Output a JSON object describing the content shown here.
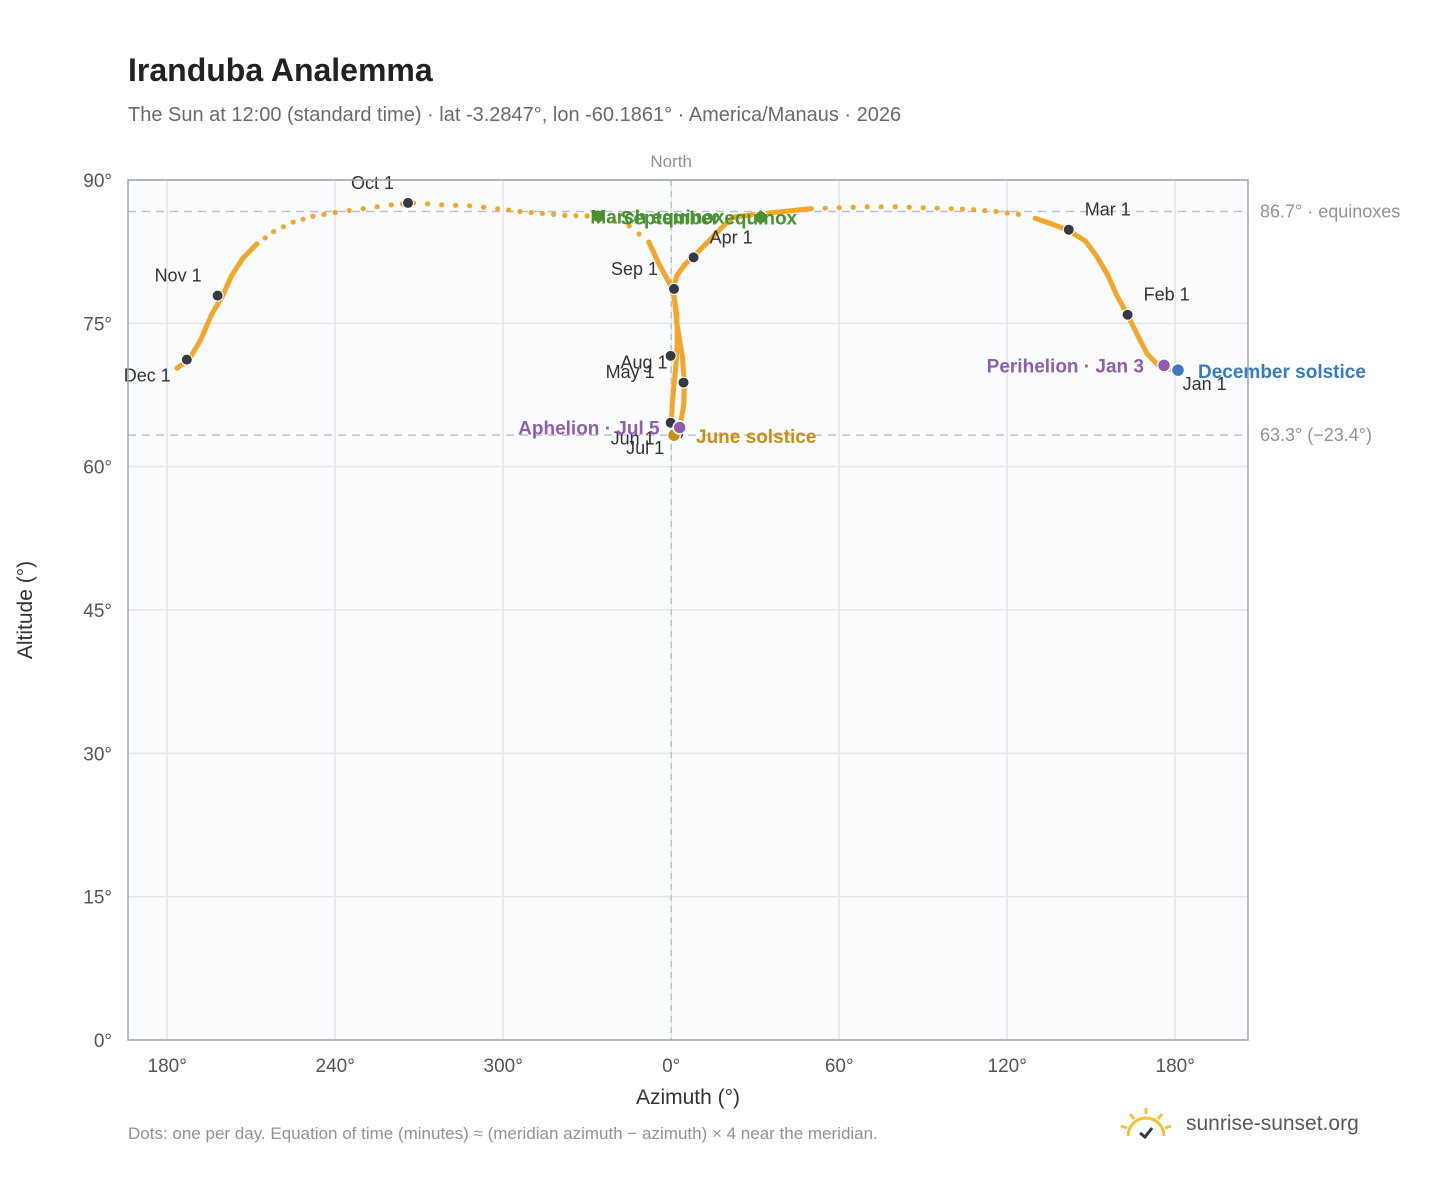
{
  "title": "Iranduba Analemma",
  "subtitle": "The Sun at 12:00 (standard time) · lat -3.2847°, lon -60.1861° · America/Manaus · 2026",
  "footnote": "Dots: one per day. Equation of time (minutes) ≈ (meridian azimuth − azimuth) × 4 near the meridian.",
  "brand": "sunrise-sunset.org",
  "brand_icon": "sun-logo-icon",
  "colors": {
    "path": "#f2a72b",
    "month_marker": "#333a42",
    "equinox": "#4a9130",
    "june_solstice": "#c98f16",
    "december_solstice": "#3a7bbf",
    "apsis": "#8c5fb0",
    "plot_bg": "#f9fbfd",
    "grid": "#e3e7eb",
    "reference_line": "#b9c2cb"
  },
  "chart_data": {
    "type": "scatter",
    "xlabel": "Azimuth (°)",
    "ylabel": "Altitude (°)",
    "xlim": [
      166,
      206
    ],
    "ylim": [
      0,
      90
    ],
    "x_ticks": [
      {
        "value": 180,
        "label": "180°"
      },
      {
        "value": 240,
        "label": "240°"
      },
      {
        "value": 300,
        "label": "300°"
      },
      {
        "value": 360,
        "label": "0°"
      },
      {
        "value": 420,
        "label": "60°"
      },
      {
        "value": 480,
        "label": "120°"
      },
      {
        "value": 540,
        "label": "180°"
      }
    ],
    "y_ticks": [
      {
        "value": 0,
        "label": "0°"
      },
      {
        "value": 15,
        "label": "15°"
      },
      {
        "value": 30,
        "label": "30°"
      },
      {
        "value": 45,
        "label": "45°"
      },
      {
        "value": 60,
        "label": "60°"
      },
      {
        "value": 75,
        "label": "75°"
      },
      {
        "value": 90,
        "label": "90°"
      }
    ],
    "grid": true,
    "meridian": {
      "azimuth": 360,
      "label": "North"
    },
    "reference_lines": [
      {
        "altitude": 86.7,
        "label": "86.7° · equinoxes"
      },
      {
        "altitude": 63.3,
        "label": "63.3° (−23.4°)"
      }
    ],
    "series": [
      {
        "path_points": [
          [
            183.5,
            70.3
          ],
          [
            188,
            71.3
          ],
          [
            192,
            73.3
          ],
          [
            196,
            76
          ],
          [
            200,
            78
          ],
          [
            203,
            80
          ],
          [
            207,
            81.8
          ],
          [
            212,
            83.3
          ],
          [
            218,
            84.6
          ],
          [
            225,
            85.6
          ],
          [
            232,
            86.2
          ],
          [
            240,
            86.6
          ],
          [
            250,
            87
          ],
          [
            260,
            87.4
          ],
          [
            268,
            87.6
          ],
          [
            278,
            87.4
          ],
          [
            288,
            87.3
          ],
          [
            298,
            87
          ],
          [
            306,
            86.7
          ],
          [
            314,
            86.5
          ],
          [
            322,
            86.3
          ],
          [
            334,
            86.2
          ],
          [
            345,
            85.2
          ],
          [
            352,
            83.5
          ],
          [
            356,
            81
          ],
          [
            360.5,
            78.6
          ],
          [
            362,
            76
          ],
          [
            362.2,
            73
          ],
          [
            361.5,
            70
          ],
          [
            360.5,
            67
          ],
          [
            360,
            64.6
          ],
          [
            361,
            63.4
          ],
          [
            363,
            64
          ],
          [
            364.5,
            66.5
          ],
          [
            364.7,
            68.9
          ],
          [
            364,
            71.5
          ],
          [
            362,
            75
          ],
          [
            360.8,
            78.6
          ],
          [
            362,
            80
          ],
          [
            365,
            81.2
          ],
          [
            368,
            82
          ],
          [
            372,
            83.2
          ],
          [
            378,
            85
          ],
          [
            382,
            86.1
          ],
          [
            390,
            86.4
          ],
          [
            400,
            86.7
          ],
          [
            410,
            87
          ],
          [
            420,
            87.1
          ],
          [
            430,
            87.2
          ],
          [
            440,
            87.2
          ],
          [
            450,
            87.1
          ],
          [
            460,
            87
          ],
          [
            468,
            86.9
          ],
          [
            476,
            86.7
          ],
          [
            484,
            86.4
          ],
          [
            490,
            86
          ],
          [
            496,
            85.4
          ],
          [
            502,
            84.7
          ],
          [
            508,
            83.6
          ],
          [
            512,
            82
          ],
          [
            516,
            80
          ],
          [
            519,
            78
          ],
          [
            523,
            75.9
          ],
          [
            527,
            73.5
          ],
          [
            530,
            71.8
          ],
          [
            534,
            70.6
          ],
          [
            538,
            70.2
          ],
          [
            541,
            69.9
          ],
          [
            544,
            70.5
          ]
        ],
        "solid_ranges": [
          [
            0,
            7
          ],
          [
            23,
            46
          ],
          [
            55,
            67
          ]
        ]
      }
    ],
    "month_markers": [
      {
        "label": "Jan 1",
        "azimuth": 540.5,
        "altitude": 69.9
      },
      {
        "label": "Feb 1",
        "azimuth": 523,
        "altitude": 75.9
      },
      {
        "label": "Mar 1",
        "azimuth": 502,
        "altitude": 84.8
      },
      {
        "label": "Apr 1",
        "azimuth": 368,
        "altitude": 81.9
      },
      {
        "label": "May 1",
        "azimuth": 359.8,
        "altitude": 71.6
      },
      {
        "label": "Jun 1",
        "azimuth": 359.8,
        "altitude": 64.6
      },
      {
        "label": "Jul 1",
        "azimuth": 362.5,
        "altitude": 63.4
      },
      {
        "label": "Aug 1",
        "azimuth": 364.4,
        "altitude": 68.8
      },
      {
        "label": "Sep 1",
        "azimuth": 361,
        "altitude": 78.6
      },
      {
        "label": "Oct 1",
        "azimuth": 266,
        "altitude": 87.6
      },
      {
        "label": "Nov 1",
        "azimuth": 198,
        "altitude": 77.9
      },
      {
        "label": "Dec 1",
        "azimuth": 187,
        "altitude": 71.2
      }
    ],
    "events": [
      {
        "label": "March equinox",
        "azimuth": 334,
        "altitude": 86.2,
        "kind": "equinox"
      },
      {
        "label": "September equinox",
        "azimuth": 392,
        "altitude": 86.1,
        "kind": "equinox"
      },
      {
        "label": "June solstice",
        "azimuth": 361,
        "altitude": 63.3,
        "kind": "june_solstice"
      },
      {
        "label": "December solstice",
        "azimuth": 541,
        "altitude": 70.1,
        "kind": "december_solstice"
      },
      {
        "label": "Aphelion · Jul 5",
        "azimuth": 363,
        "altitude": 64.1,
        "kind": "apsis"
      },
      {
        "label": "Perihelion · Jan 3",
        "azimuth": 536,
        "altitude": 70.6,
        "kind": "apsis"
      }
    ]
  }
}
